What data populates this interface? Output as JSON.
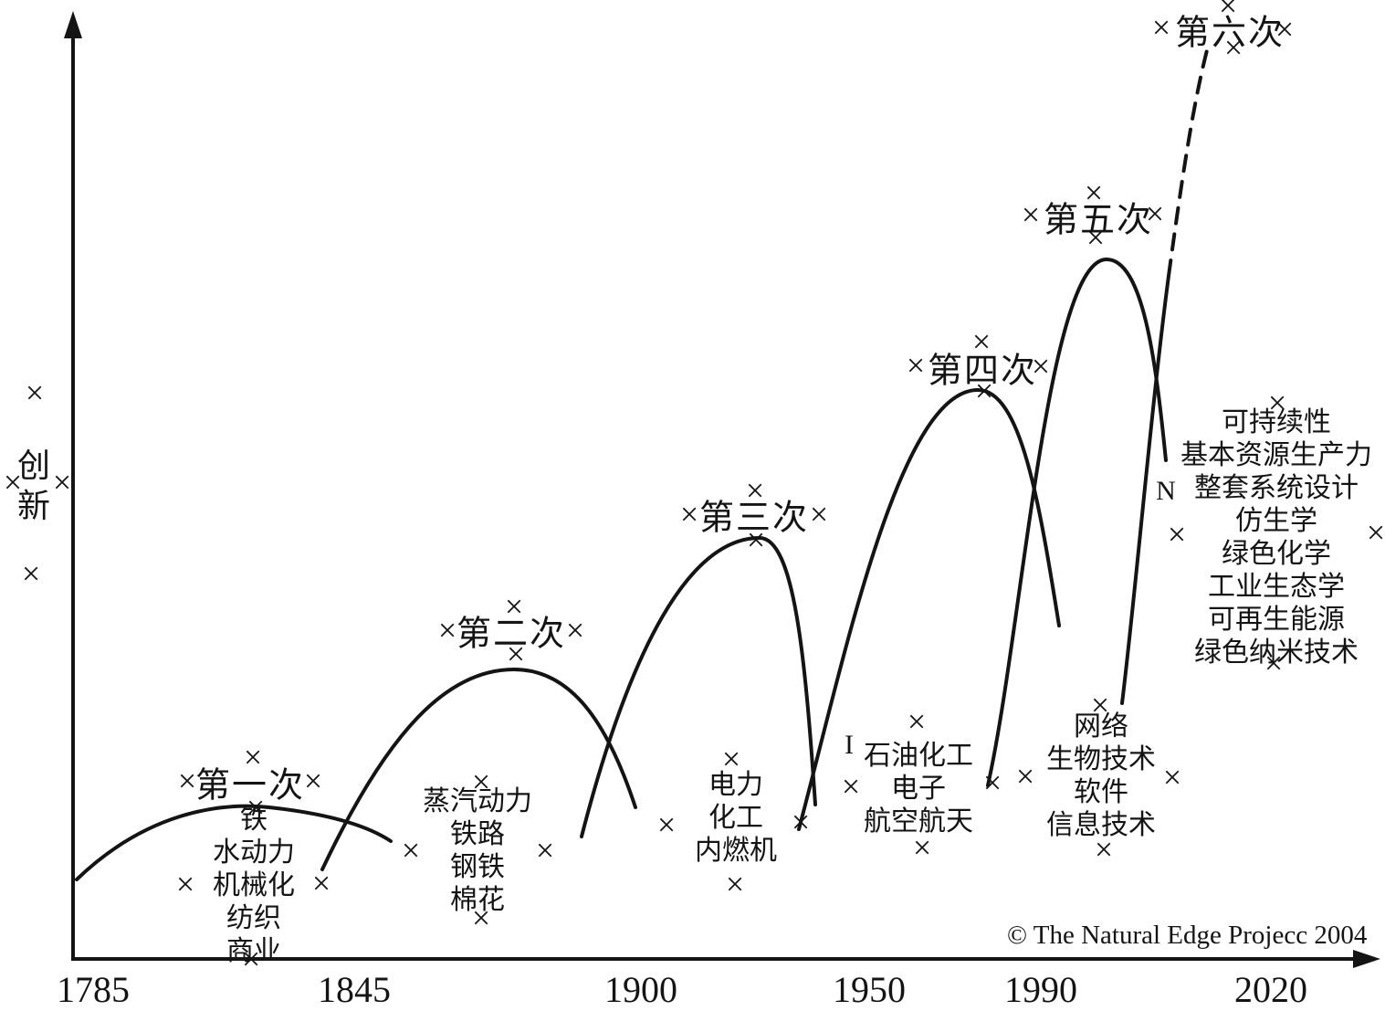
{
  "glyphs": {
    "cross": "×"
  },
  "stray_letters": {
    "i": "I",
    "n": "N"
  },
  "footer": {
    "copyright": "© The Natural Edge Projecc 2004"
  },
  "chart_data": {
    "type": "area",
    "title": "",
    "xlabel": "",
    "ylabel": "创新",
    "x_ticks": [
      "1785",
      "1845",
      "1900",
      "1950",
      "1990",
      "2020"
    ],
    "grid": false,
    "legend": false,
    "annotation": "© The Natural Edge Projecc 2004",
    "description": "Six successive waves of innovation drawn as overlapping bell curves of increasing height; the sixth wave is dashed and still rising past 2020",
    "series": [
      {
        "name": "第一次",
        "span_years": [
          "1785",
          "1845"
        ],
        "peak_year": "1820",
        "peak_height": 0.16,
        "style": "solid",
        "technologies": [
          "铁",
          "水动力",
          "机械化",
          "纺织",
          "商业"
        ]
      },
      {
        "name": "第二次",
        "span_years": [
          "1845",
          "1900"
        ],
        "peak_year": "1875",
        "peak_height": 0.31,
        "style": "solid",
        "technologies": [
          "蒸汽动力",
          "铁路",
          "钢铁",
          "棉花"
        ]
      },
      {
        "name": "第三次",
        "span_years": [
          "1900",
          "1950"
        ],
        "peak_year": "1925",
        "peak_height": 0.45,
        "style": "solid",
        "technologies": [
          "电力",
          "化工",
          "内燃机"
        ]
      },
      {
        "name": "第四次",
        "span_years": [
          "1950",
          "1990"
        ],
        "peak_year": "1975",
        "peak_height": 0.61,
        "style": "solid",
        "technologies": [
          "石油化工",
          "电子",
          "航空航天"
        ]
      },
      {
        "name": "第五次",
        "span_years": [
          "1990",
          "2020"
        ],
        "peak_year": "2000",
        "peak_height": 0.75,
        "style": "solid",
        "technologies": [
          "网络",
          "生物技术",
          "软件",
          "信息技术"
        ]
      },
      {
        "name": "第六次",
        "span_years": [
          "2020",
          ""
        ],
        "peak_year": "",
        "peak_height": 0.97,
        "style": "dashed-rising",
        "technologies": [
          "可持续性",
          "基本资源生产力",
          "整套系统设计",
          "仿生学",
          "绿色化学",
          "工业生态学",
          "可再生能源",
          "绿色纳米技术"
        ]
      }
    ]
  }
}
